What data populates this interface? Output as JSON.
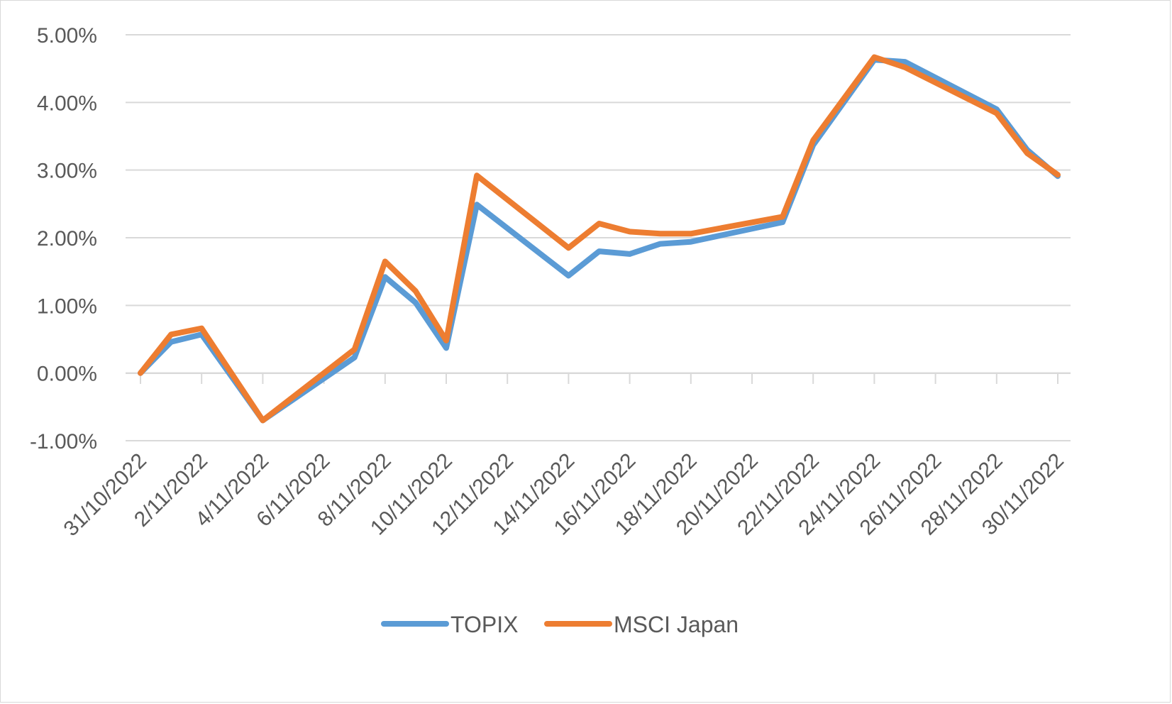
{
  "chart_data": {
    "type": "line",
    "title": "",
    "xlabel": "",
    "ylabel": "",
    "x": [
      "31/10/2022",
      "1/11/2022",
      "2/11/2022",
      "4/11/2022",
      "7/11/2022",
      "8/11/2022",
      "9/11/2022",
      "10/11/2022",
      "11/11/2022",
      "14/11/2022",
      "15/11/2022",
      "16/11/2022",
      "17/11/2022",
      "18/11/2022",
      "21/11/2022",
      "22/11/2022",
      "24/11/2022",
      "25/11/2022",
      "28/11/2022",
      "29/11/2022",
      "30/11/2022"
    ],
    "x_tick_labels": [
      "31/10/2022",
      "2/11/2022",
      "4/11/2022",
      "6/11/2022",
      "8/11/2022",
      "10/11/2022",
      "12/11/2022",
      "14/11/2022",
      "16/11/2022",
      "18/11/2022",
      "20/11/2022",
      "22/11/2022",
      "24/11/2022",
      "26/11/2022",
      "28/11/2022",
      "30/11/2022"
    ],
    "ylim": [
      -0.01,
      0.05
    ],
    "y_tick_labels": [
      "-1.00%",
      "0.00%",
      "1.00%",
      "2.00%",
      "3.00%",
      "4.00%",
      "5.00%"
    ],
    "grid": true,
    "legend_position": "bottom",
    "series": [
      {
        "name": "TOPIX",
        "color": "#5B9BD5",
        "values": [
          0.0,
          0.0046,
          0.0057,
          -0.007,
          0.0023,
          0.0142,
          0.0104,
          0.0037,
          0.0249,
          0.0144,
          0.018,
          0.0176,
          0.0191,
          0.0194,
          0.0223,
          0.0337,
          0.0463,
          0.046,
          0.039,
          0.033,
          0.0291
        ]
      },
      {
        "name": "MSCI Japan",
        "color": "#ED7D31",
        "values": [
          0.0,
          0.0057,
          0.0066,
          -0.007,
          0.0035,
          0.0165,
          0.0121,
          0.0048,
          0.0292,
          0.0185,
          0.0221,
          0.0209,
          0.0206,
          0.0206,
          0.0231,
          0.0344,
          0.0467,
          0.0452,
          0.0384,
          0.0325,
          0.0293
        ]
      }
    ]
  }
}
